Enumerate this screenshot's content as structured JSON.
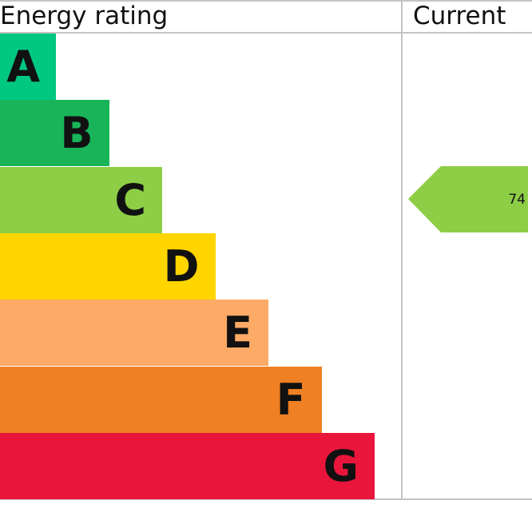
{
  "header": {
    "rating_label": "Energy rating",
    "current_label": "Current"
  },
  "chart_data": {
    "type": "bar",
    "categories": [
      "A",
      "B",
      "C",
      "D",
      "E",
      "F",
      "G"
    ],
    "colors": [
      "#00c781",
      "#19b459",
      "#8dce46",
      "#ffd500",
      "#fcaa65",
      "#ef8023",
      "#e9153b"
    ],
    "current": {
      "value": "74",
      "band": "C",
      "color": "#8dce46"
    }
  }
}
